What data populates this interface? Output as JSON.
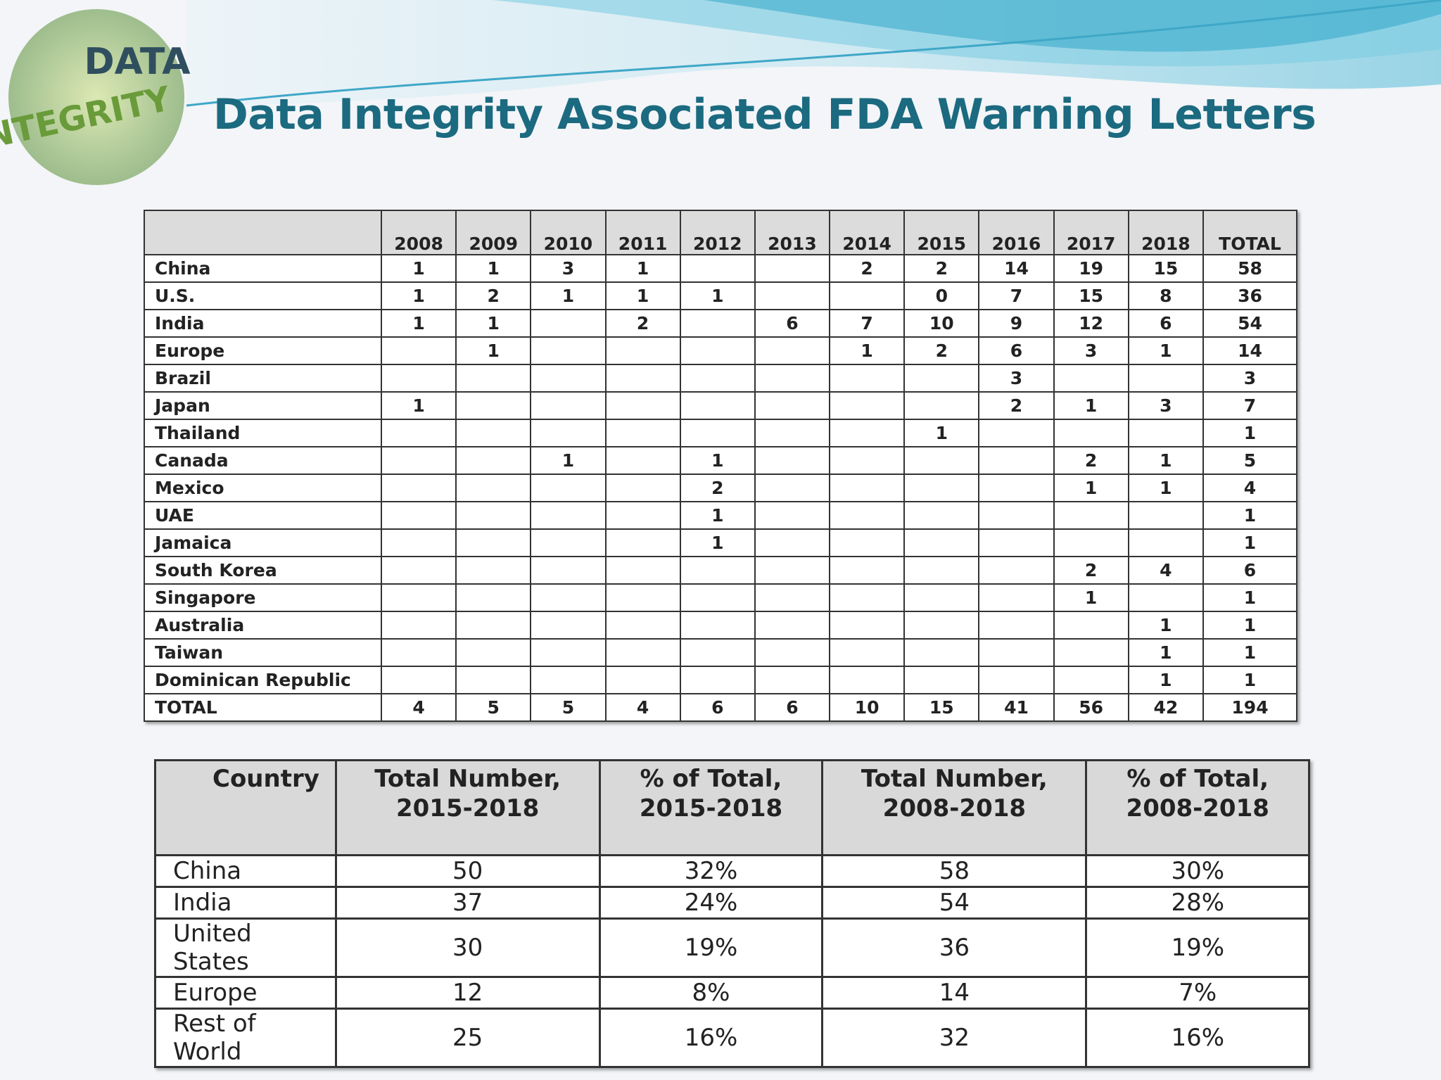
{
  "title": "Data Integrity Associated FDA Warning Letters",
  "logo": {
    "words": [
      "DATA",
      "INTEGRITY"
    ]
  },
  "table": {
    "header": [
      null,
      "2008",
      "2009",
      "2010",
      "2011",
      "2012",
      "2013",
      "2014",
      "2015",
      "2016",
      "2017",
      "2018",
      "TOTAL"
    ],
    "rows": [
      [
        "China",
        1,
        1,
        3,
        1,
        null,
        null,
        2,
        2,
        14,
        19,
        15,
        58
      ],
      [
        "U.S.",
        1,
        2,
        1,
        1,
        1,
        null,
        null,
        0,
        7,
        15,
        8,
        36
      ],
      [
        "India",
        1,
        1,
        null,
        2,
        null,
        6,
        7,
        10,
        9,
        12,
        6,
        54
      ],
      [
        "Europe",
        null,
        1,
        null,
        null,
        null,
        null,
        1,
        2,
        6,
        3,
        1,
        14
      ],
      [
        "Brazil",
        null,
        null,
        null,
        null,
        null,
        null,
        null,
        null,
        3,
        null,
        null,
        3
      ],
      [
        "Japan",
        1,
        null,
        null,
        null,
        null,
        null,
        null,
        null,
        2,
        1,
        3,
        7
      ],
      [
        "Thailand",
        null,
        null,
        null,
        null,
        null,
        null,
        null,
        1,
        null,
        null,
        null,
        1
      ],
      [
        "Canada",
        null,
        null,
        1,
        null,
        1,
        null,
        null,
        null,
        null,
        2,
        1,
        5
      ],
      [
        "Mexico",
        null,
        null,
        null,
        null,
        2,
        null,
        null,
        null,
        null,
        1,
        1,
        4
      ],
      [
        "UAE",
        null,
        null,
        null,
        null,
        1,
        null,
        null,
        null,
        null,
        null,
        null,
        1
      ],
      [
        "Jamaica",
        null,
        null,
        null,
        null,
        1,
        null,
        null,
        null,
        null,
        null,
        null,
        1
      ],
      [
        "South Korea",
        null,
        null,
        null,
        null,
        null,
        null,
        null,
        null,
        null,
        2,
        4,
        6
      ],
      [
        "Singapore",
        null,
        null,
        null,
        null,
        null,
        null,
        null,
        null,
        null,
        1,
        null,
        1
      ],
      [
        "Australia",
        null,
        null,
        null,
        null,
        null,
        null,
        null,
        null,
        null,
        null,
        1,
        1
      ],
      [
        "Taiwan",
        null,
        null,
        null,
        null,
        null,
        null,
        null,
        null,
        null,
        null,
        1,
        1
      ],
      [
        "Dominican Republic",
        null,
        null,
        null,
        null,
        null,
        null,
        null,
        null,
        null,
        null,
        1,
        1
      ],
      [
        "TOTAL",
        4,
        5,
        5,
        4,
        6,
        6,
        10,
        15,
        41,
        56,
        42,
        194
      ]
    ]
  },
  "summary": {
    "header": [
      "Country",
      "Total Number, 2015-2018",
      "% of Total, 2015-2018",
      "Total Number, 2008-2018",
      "% of Total, 2008-2018"
    ],
    "rows": [
      [
        "China",
        "50",
        "32%",
        "58",
        "30%"
      ],
      [
        "India",
        "37",
        "24%",
        "54",
        "28%"
      ],
      [
        "United States",
        "30",
        "19%",
        "36",
        "19%"
      ],
      [
        "Europe",
        "12",
        "8%",
        "14",
        "7%"
      ],
      [
        "Rest of World",
        "25",
        "16%",
        "32",
        "16%"
      ]
    ]
  }
}
